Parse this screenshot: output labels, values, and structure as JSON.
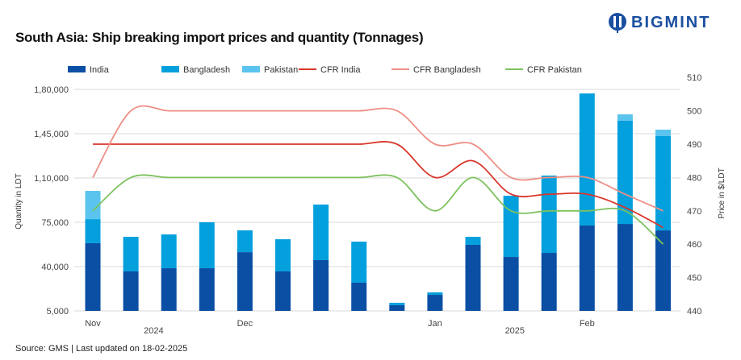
{
  "title": "South Asia: Ship breaking import prices and quantity (Tonnages)",
  "logo": "BIGMINT",
  "source": "Source: GMS | Last updated on 18-02-2025",
  "chart_data": {
    "type": "bar+line",
    "title": "South Asia: Ship breaking import prices and quantity (Tonnages)",
    "ylabel": "Quantity in LDT",
    "y2label": "Price in $/LDT",
    "ylim": [
      5000,
      180000
    ],
    "y2lim": [
      440,
      510
    ],
    "yticks": [
      "5,000",
      "40,000",
      "75,000",
      "1,10,000",
      "1,45,000",
      "1,80,000"
    ],
    "ytick_values": [
      5000,
      40000,
      75000,
      110000,
      145000,
      180000
    ],
    "y2ticks": [
      440,
      450,
      460,
      470,
      480,
      490,
      500,
      510
    ],
    "grid": true,
    "legend_position": "top",
    "x_labels": [
      {
        "label": "Nov",
        "index": 0
      },
      {
        "label": "2024",
        "index": 1.6
      },
      {
        "label": "Dec",
        "index": 4
      },
      {
        "label": "Jan",
        "index": 9
      },
      {
        "label": "2025",
        "index": 11.1
      },
      {
        "label": "Feb",
        "index": 13
      }
    ],
    "bar_series": [
      {
        "name": "India",
        "color": "#0a4fa3",
        "values": [
          53500,
          31200,
          33700,
          33700,
          46400,
          31200,
          40100,
          22300,
          4500,
          12700,
          52200,
          42600,
          45800,
          67500,
          68700,
          63600
        ]
      },
      {
        "name": "Bangladesh",
        "color": "#03a0dd",
        "values": [
          19000,
          27300,
          26700,
          36300,
          17200,
          25400,
          43900,
          32400,
          1900,
          1900,
          6300,
          48400,
          61100,
          104300,
          81500,
          74500
        ]
      },
      {
        "name": "Pakistan",
        "color": "#5bc4ee",
        "values": [
          22300,
          0,
          0,
          0,
          0,
          0,
          0,
          0,
          0,
          0,
          0,
          0,
          0,
          0,
          5100,
          5100
        ]
      }
    ],
    "line_series": [
      {
        "name": "CFR India",
        "color": "#d9362b",
        "values": [
          490,
          490,
          490,
          490,
          490,
          490,
          490,
          490,
          490,
          480,
          485,
          475,
          475,
          475,
          471,
          465
        ]
      },
      {
        "name": "CFR Bangladesh",
        "color": "#ee8f86",
        "values": [
          480,
          500,
          500,
          500,
          500,
          500,
          500,
          500,
          500,
          490,
          490,
          480,
          480,
          480,
          475,
          470
        ]
      },
      {
        "name": "CFR Pakistan",
        "color": "#7dc25d",
        "values": [
          470,
          480,
          480,
          480,
          480,
          480,
          480,
          480,
          480,
          470,
          480,
          470,
          470,
          470,
          470,
          460
        ]
      }
    ]
  }
}
